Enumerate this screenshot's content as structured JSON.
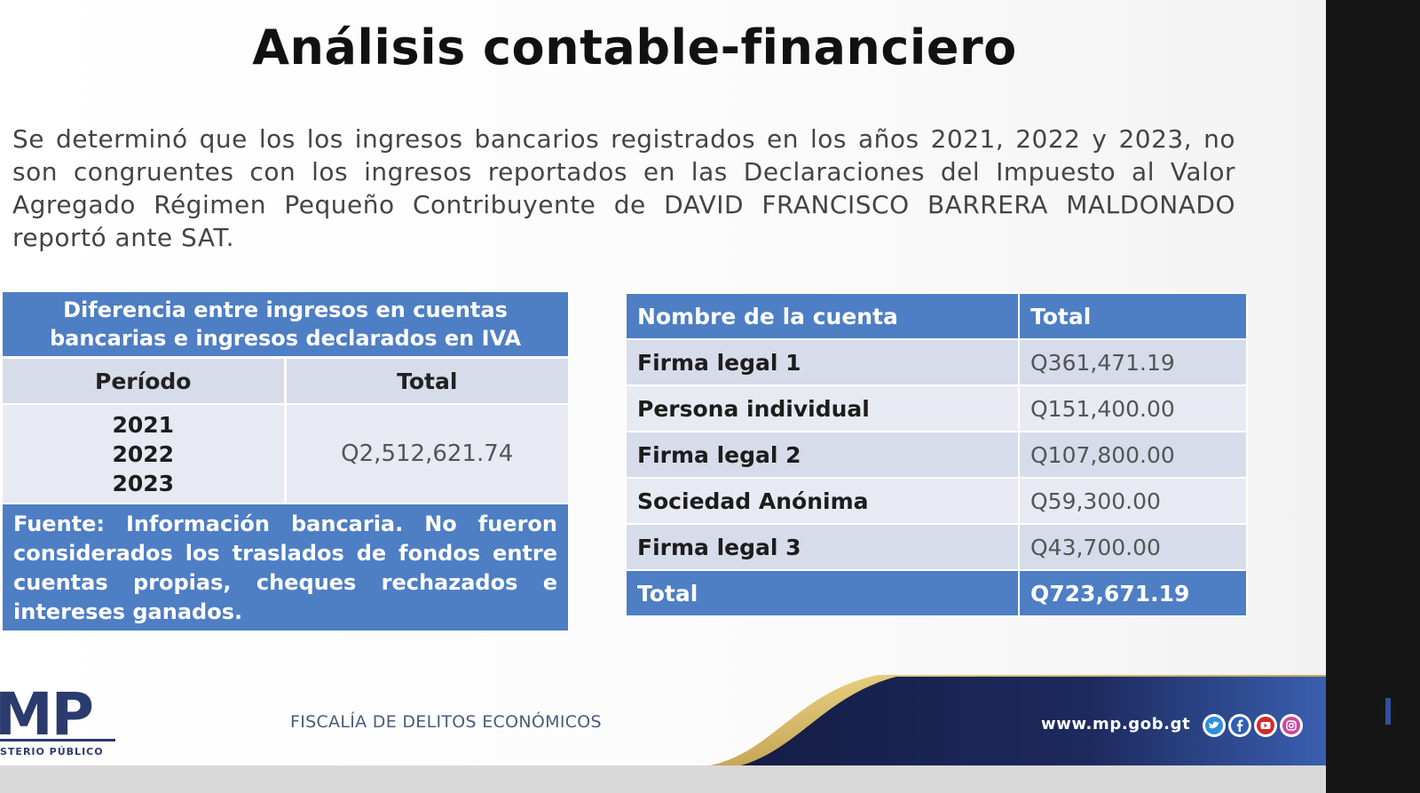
{
  "slide": {
    "title": "Análisis contable-financiero",
    "intro": "Se determinó que los los ingresos bancarios registrados en los años 2021, 2022 y 2023, no son congruentes con los ingresos reportados en las Declaraciones del Impuesto al Valor Agregado Régimen Pequeño Contribuyente de DAVID FRANCISCO BARRERA MALDONADO reportó ante SAT."
  },
  "left_table": {
    "header": "Diferencia entre ingresos en cuentas bancarias e ingresos declarados en IVA",
    "col_period": "Período",
    "col_total": "Total",
    "years": [
      "2021",
      "2022",
      "2023"
    ],
    "total": "Q2,512,621.74",
    "footnote": "Fuente: Información bancaria. No fueron considerados los traslados de fondos entre cuentas propias, cheques rechazados e intereses ganados."
  },
  "right_table": {
    "col_name": "Nombre de la cuenta",
    "col_total": "Total",
    "rows": [
      {
        "name": "Firma legal 1",
        "total": "Q361,471.19"
      },
      {
        "name": "Persona individual",
        "total": "Q151,400.00"
      },
      {
        "name": "Firma legal 2",
        "total": "Q107,800.00"
      },
      {
        "name": "Sociedad Anónima",
        "total": "Q59,300.00"
      },
      {
        "name": "Firma legal 3",
        "total": "Q43,700.00"
      }
    ],
    "total_label": "Total",
    "total_value": "Q723,671.19"
  },
  "footer": {
    "logo": "MP",
    "logo_text": "STERIO PÚBLICO",
    "fiscalia": "FISCALÍA DE DELITOS ECONÓMICOS",
    "website": "www.mp.gob.gt",
    "social_icons": [
      "twitter-icon",
      "facebook-icon",
      "youtube-icon",
      "instagram-icon"
    ]
  },
  "colors": {
    "table_blue": "#4e7ec4",
    "row_light": "#e7eaf2",
    "row_mid": "#d6dcea",
    "footer_navy": "#1d2a5e",
    "gold": "#c8a24a"
  }
}
